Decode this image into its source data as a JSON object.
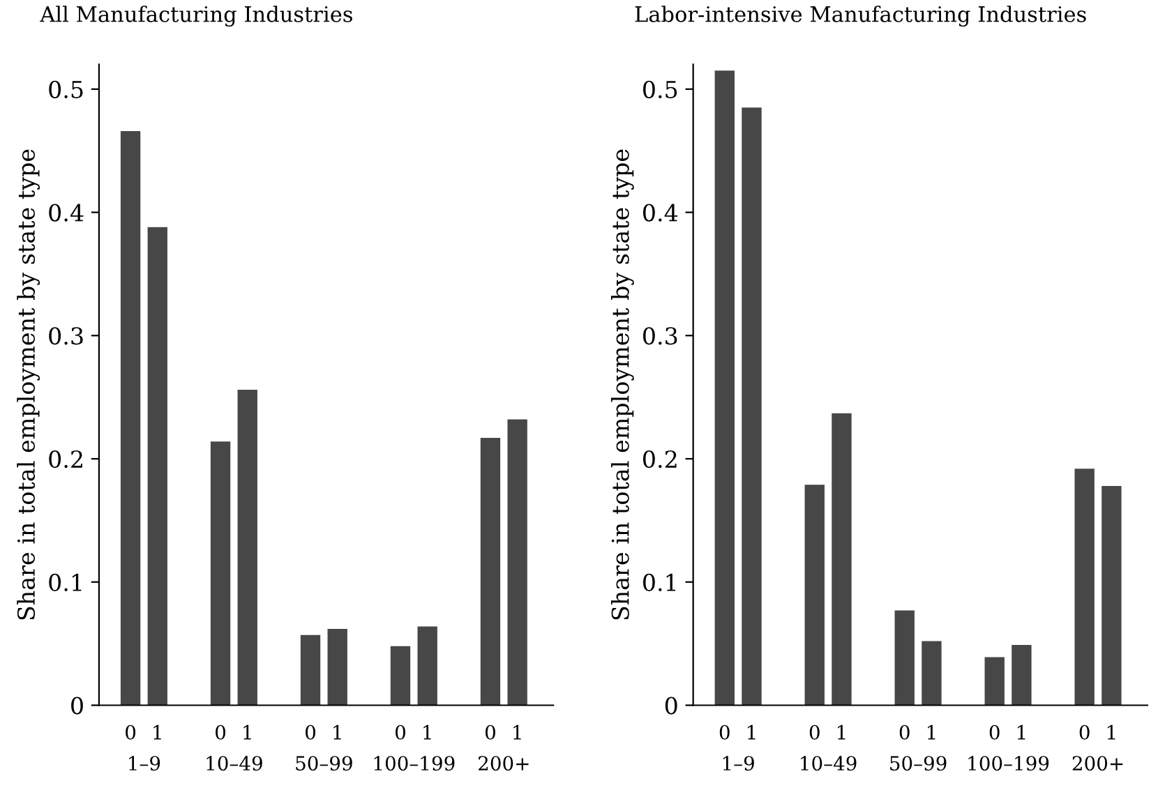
{
  "chart_data": [
    {
      "type": "bar",
      "title": "All Manufacturing Industries",
      "ylabel": "Share in total employment by state type",
      "categories": [
        "1–9",
        "10–49",
        "50–99",
        "100–199",
        "200+"
      ],
      "series": [
        {
          "name": "0",
          "color": "#474747",
          "values": [
            0.466,
            0.214,
            0.057,
            0.048,
            0.217
          ]
        },
        {
          "name": "1",
          "color": "#474747",
          "values": [
            0.388,
            0.256,
            0.062,
            0.064,
            0.232
          ]
        }
      ],
      "ylim": [
        0,
        0.52
      ],
      "yticks": [
        0,
        0.1,
        0.2,
        0.3,
        0.4,
        0.5
      ]
    },
    {
      "type": "bar",
      "title": "Labor-intensive Manufacturing Industries",
      "ylabel": "Share in total employment by state type",
      "categories": [
        "1–9",
        "10–49",
        "50–99",
        "100–199",
        "200+"
      ],
      "series": [
        {
          "name": "0",
          "color": "#474747",
          "values": [
            0.515,
            0.179,
            0.077,
            0.039,
            0.192
          ]
        },
        {
          "name": "1",
          "color": "#474747",
          "values": [
            0.485,
            0.237,
            0.052,
            0.049,
            0.178
          ]
        }
      ],
      "ylim": [
        0,
        0.52
      ],
      "yticks": [
        0,
        0.1,
        0.2,
        0.3,
        0.4,
        0.5
      ]
    }
  ]
}
